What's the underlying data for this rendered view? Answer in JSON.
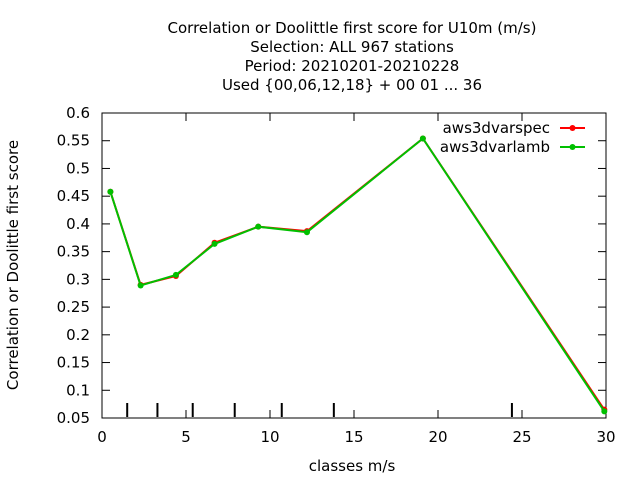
{
  "chart_data": {
    "type": "line",
    "title_lines": [
      "Correlation or Doolittle first score  for U10m (m/s)",
      "Selection: ALL    967 stations",
      "Period: 20210201-20210228",
      "Used {00,06,12,18} + 00 01 ... 36"
    ],
    "xlabel": "classes m/s",
    "ylabel": "Correlation or Doolittle first score",
    "xlim": [
      0,
      30
    ],
    "ylim": [
      0.05,
      0.6
    ],
    "xticks": [
      0,
      5,
      10,
      15,
      20,
      25,
      30
    ],
    "yticks": [
      0.05,
      0.1,
      0.15,
      0.2,
      0.25,
      0.3,
      0.35,
      0.4,
      0.45,
      0.5,
      0.55,
      0.6
    ],
    "ytick_labels": [
      "0.05",
      "0.1",
      "0.15",
      "0.2",
      "0.25",
      "0.3",
      "0.35",
      "0.4",
      "0.45",
      "0.5",
      "0.55",
      "0.6"
    ],
    "class_boundaries": [
      1.5,
      3.3,
      5.4,
      7.9,
      10.7,
      13.8,
      24.4
    ],
    "grid": false,
    "legend_position": "top-right",
    "series": [
      {
        "name": "aws3dvarspec",
        "color": "#ff0000",
        "x": [
          0.5,
          2.3,
          4.4,
          6.7,
          9.3,
          12.2,
          19.1,
          29.9
        ],
        "y": [
          0.458,
          0.29,
          0.306,
          0.366,
          0.395,
          0.387,
          0.554,
          0.065
        ]
      },
      {
        "name": "aws3dvarlamb",
        "color": "#00c000",
        "x": [
          0.5,
          2.3,
          4.4,
          6.7,
          9.3,
          12.2,
          19.1,
          29.9
        ],
        "y": [
          0.458,
          0.289,
          0.308,
          0.364,
          0.395,
          0.385,
          0.554,
          0.062
        ]
      }
    ]
  }
}
